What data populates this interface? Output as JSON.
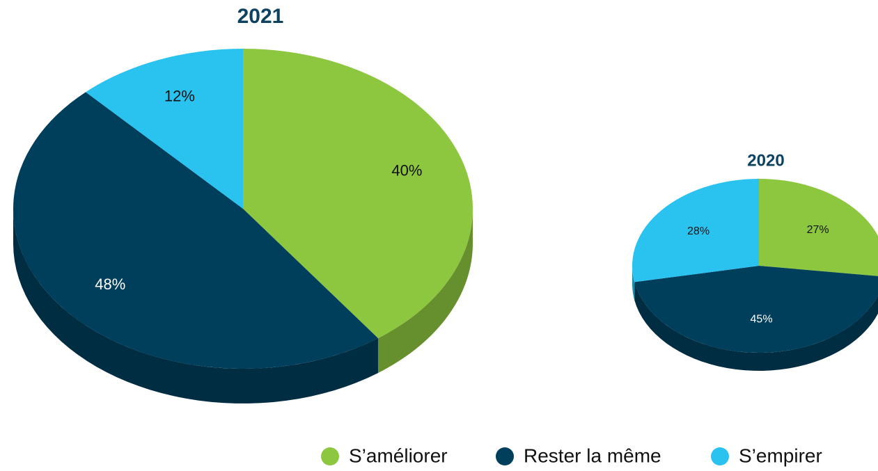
{
  "chart_data": [
    {
      "type": "pie3d",
      "title": "2021",
      "categories": [
        "S’améliorer",
        "Rester la même",
        "S’empirer"
      ],
      "values": [
        40,
        48,
        12
      ],
      "value_labels": [
        "40%",
        "48%",
        "12%"
      ],
      "colors": [
        "#8dc63f",
        "#003f5c",
        "#2ac3ef"
      ],
      "label_colors": [
        "#111111",
        "#ffffff",
        "#111111"
      ],
      "legend": "bottom"
    },
    {
      "type": "pie3d",
      "title": "2020",
      "categories": [
        "S’améliorer",
        "Rester la même",
        "S’empirer"
      ],
      "values": [
        27,
        45,
        28
      ],
      "value_labels": [
        "27%",
        "45%",
        "28%"
      ],
      "colors": [
        "#8dc63f",
        "#003f5c",
        "#2ac3ef"
      ],
      "label_colors": [
        "#111111",
        "#ffffff",
        "#111111"
      ]
    }
  ]
}
